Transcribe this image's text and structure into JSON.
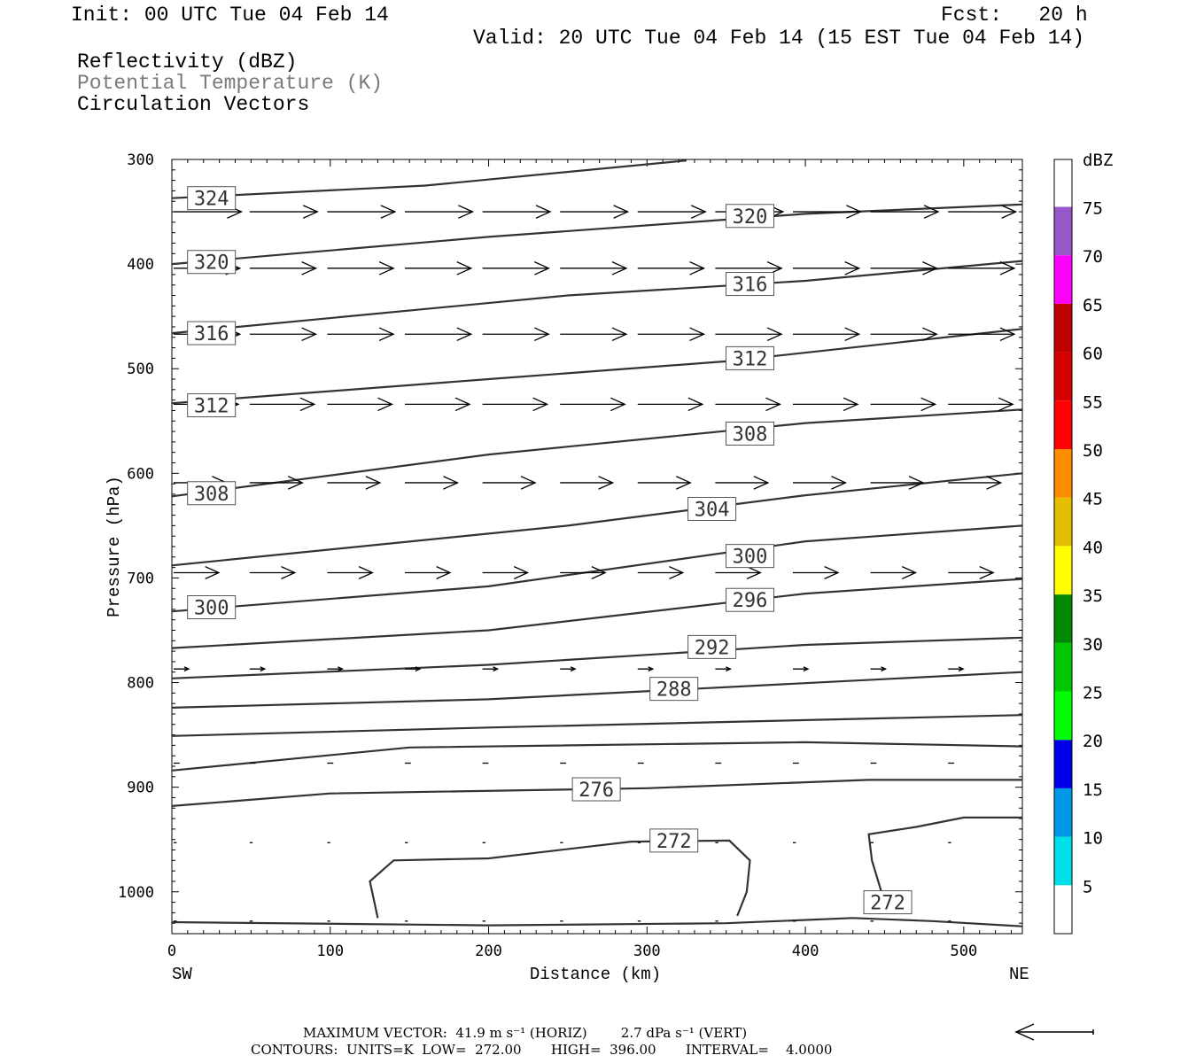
{
  "header": {
    "init": "Init: 00 UTC Tue 04 Feb 14",
    "fcst": "Fcst:   20 h",
    "valid": "Valid: 20 UTC Tue 04 Feb 14 (15 EST Tue 04 Feb 14)",
    "field1": "Reflectivity (dBZ)",
    "field2": "Potential Temperature (K)",
    "field3": "Circulation Vectors"
  },
  "footer": {
    "max_vector": "MAXIMUM VECTOR:  41.9 m s⁻¹ (HORIZ)        2.7 dPa s⁻¹ (VERT)",
    "contours": "CONTOURS:  UNITS=K  LOW=  272.00       HIGH=  396.00       INTERVAL=    4.0000"
  },
  "chart_data": {
    "type": "line",
    "title": "",
    "xlabel": "Distance (km)",
    "ylabel": "Pressure (hPa)",
    "xlim": [
      0,
      537
    ],
    "ylim": [
      300,
      1040
    ],
    "y_scale": "inverted",
    "x_ticks": [
      0,
      100,
      200,
      300,
      400,
      500
    ],
    "y_ticks": [
      300,
      400,
      500,
      600,
      700,
      800,
      900,
      1000
    ],
    "x_end_labels": {
      "left": "SW",
      "right": "NE"
    },
    "colorbar": {
      "title": "dBZ",
      "labels": [
        5,
        10,
        15,
        20,
        25,
        30,
        35,
        40,
        45,
        50,
        55,
        60,
        65,
        70,
        75
      ],
      "colors": [
        "#ffffff",
        "#00e0e8",
        "#0098e8",
        "#0000e8",
        "#00ff00",
        "#00c800",
        "#008a00",
        "#ffff00",
        "#e6be00",
        "#ff8c00",
        "#ff0000",
        "#d70000",
        "#c00000",
        "#ff00ff",
        "#9858c8"
      ]
    },
    "contour_units": "K",
    "contours": [
      {
        "value": 324,
        "points": [
          [
            0,
            337
          ],
          [
            160,
            325
          ],
          [
            325,
            301
          ]
        ]
      },
      {
        "value": 320,
        "points": [
          [
            0,
            400
          ],
          [
            200,
            374
          ],
          [
            400,
            352
          ],
          [
            537,
            343
          ]
        ]
      },
      {
        "value": 316,
        "points": [
          [
            0,
            466
          ],
          [
            250,
            430
          ],
          [
            400,
            416
          ],
          [
            537,
            397
          ]
        ]
      },
      {
        "value": 312,
        "points": [
          [
            0,
            533
          ],
          [
            200,
            510
          ],
          [
            350,
            493
          ],
          [
            537,
            462
          ]
        ]
      },
      {
        "value": 308,
        "points": [
          [
            0,
            622
          ],
          [
            200,
            582
          ],
          [
            400,
            552
          ],
          [
            537,
            539
          ]
        ]
      },
      {
        "value": 304,
        "points": [
          [
            0,
            688
          ],
          [
            250,
            650
          ],
          [
            400,
            621
          ],
          [
            537,
            600
          ]
        ]
      },
      {
        "value": 300,
        "points": [
          [
            0,
            732
          ],
          [
            200,
            708
          ],
          [
            400,
            665
          ],
          [
            537,
            650
          ]
        ]
      },
      {
        "value": 296,
        "points": [
          [
            0,
            767
          ],
          [
            200,
            750
          ],
          [
            400,
            715
          ],
          [
            537,
            701
          ]
        ]
      },
      {
        "value": 292,
        "points": [
          [
            0,
            796
          ],
          [
            200,
            783
          ],
          [
            400,
            764
          ],
          [
            537,
            757
          ]
        ]
      },
      {
        "value": 288,
        "points": [
          [
            0,
            824
          ],
          [
            200,
            816
          ],
          [
            537,
            790
          ]
        ]
      },
      {
        "value": 284,
        "points": [
          [
            0,
            851
          ],
          [
            200,
            843
          ],
          [
            537,
            831
          ]
        ]
      },
      {
        "value": 280,
        "points": [
          [
            0,
            884
          ],
          [
            150,
            862
          ],
          [
            400,
            857
          ],
          [
            537,
            861
          ]
        ]
      },
      {
        "value": 276,
        "points": [
          [
            0,
            918
          ],
          [
            100,
            906
          ],
          [
            300,
            901
          ],
          [
            440,
            893
          ],
          [
            537,
            893
          ]
        ]
      },
      {
        "value": 272,
        "points": [
          [
            130,
            1025
          ],
          [
            125,
            990
          ],
          [
            140,
            970
          ],
          [
            200,
            968
          ],
          [
            290,
            952
          ],
          [
            352,
            951
          ],
          [
            365,
            970
          ],
          [
            363,
            1000
          ],
          [
            357,
            1023
          ]
        ]
      },
      {
        "value": 272,
        "points": [
          [
            0,
            1029
          ],
          [
            200,
            1032
          ],
          [
            350,
            1030
          ],
          [
            430,
            1025
          ],
          [
            480,
            1028
          ],
          [
            537,
            1033
          ]
        ]
      },
      {
        "value": 272,
        "points": [
          [
            448,
            1000
          ],
          [
            442,
            970
          ],
          [
            440,
            945
          ],
          [
            470,
            938
          ],
          [
            500,
            929
          ],
          [
            537,
            929
          ]
        ]
      }
    ],
    "contour_labels": [
      {
        "text": "324",
        "x": 25,
        "y": 337
      },
      {
        "text": "320",
        "x": 365,
        "y": 354
      },
      {
        "text": "320",
        "x": 25,
        "y": 398
      },
      {
        "text": "316",
        "x": 365,
        "y": 419
      },
      {
        "text": "316",
        "x": 25,
        "y": 466
      },
      {
        "text": "312",
        "x": 365,
        "y": 490
      },
      {
        "text": "312",
        "x": 25,
        "y": 535
      },
      {
        "text": "308",
        "x": 365,
        "y": 562
      },
      {
        "text": "308",
        "x": 25,
        "y": 619
      },
      {
        "text": "304",
        "x": 341,
        "y": 634
      },
      {
        "text": "300",
        "x": 365,
        "y": 679
      },
      {
        "text": "300",
        "x": 25,
        "y": 728
      },
      {
        "text": "296",
        "x": 365,
        "y": 721
      },
      {
        "text": "292",
        "x": 341,
        "y": 766
      },
      {
        "text": "288",
        "x": 317,
        "y": 806
      },
      {
        "text": "276",
        "x": 268,
        "y": 902
      },
      {
        "text": "272",
        "x": 317,
        "y": 951
      },
      {
        "text": "272",
        "x": 452,
        "y": 1010
      }
    ],
    "vector_rows": [
      {
        "p": 350,
        "len": 45
      },
      {
        "p": 404,
        "len": 44
      },
      {
        "p": 467,
        "len": 44
      },
      {
        "p": 534,
        "len": 43
      },
      {
        "p": 609,
        "len": 35
      },
      {
        "p": 695,
        "len": 30
      },
      {
        "p": 787,
        "len": 10
      },
      {
        "p": 877,
        "len": 4
      },
      {
        "p": 953,
        "len": 2
      },
      {
        "p": 1028,
        "len": 2
      }
    ],
    "vector_x": [
      0,
      48,
      97,
      146,
      195,
      244,
      293,
      342,
      391,
      440,
      489
    ]
  }
}
